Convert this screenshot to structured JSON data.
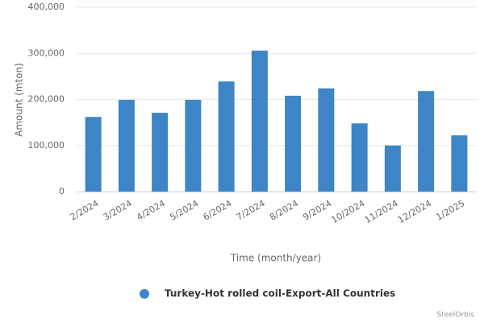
{
  "chart_data": {
    "type": "bar",
    "x_label": "Time (month/year)",
    "y_label": "Amount (mton)",
    "categories": [
      "2/2024",
      "3/2024",
      "4/2024",
      "5/2024",
      "6/2024",
      "7/2024",
      "8/2024",
      "9/2024",
      "10/2024",
      "11/2024",
      "12/2024",
      "1/2025"
    ],
    "series": [
      {
        "name": "Turkey-Hot rolled coil-Export-All Countries",
        "color": "#3d85c6",
        "values": [
          162000,
          199000,
          171000,
          199000,
          239000,
          306000,
          208000,
          224000,
          148000,
          100000,
          218000,
          122000
        ]
      }
    ],
    "ylim": [
      0,
      400000
    ],
    "yticks": [
      0,
      {
        "value": 100000,
        "label": "100,000"
      },
      {
        "value": 200000,
        "label": "200,000"
      },
      {
        "value": 300000,
        "label": "300,000"
      },
      {
        "value": 400000,
        "label": "400,000"
      }
    ],
    "grid": true,
    "credits": "SteelOrbis"
  }
}
